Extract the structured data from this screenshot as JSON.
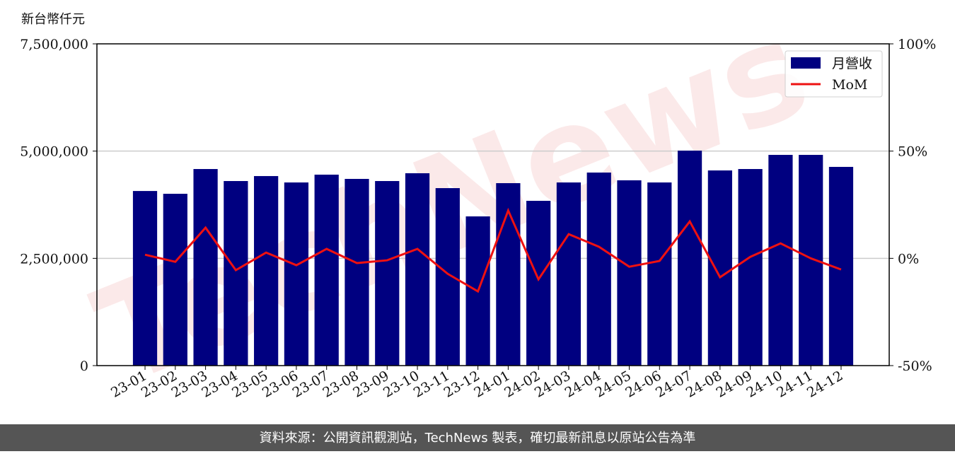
{
  "chart_data": {
    "type": "bar-line",
    "unit_label": "新台幣仟元",
    "watermark": "TechNews",
    "footer": "資料來源：公開資訊觀測站，TechNews 製表，確切最新訊息以原站公告為準",
    "categories": [
      "23-01",
      "23-02",
      "23-03",
      "23-04",
      "23-05",
      "23-06",
      "23-07",
      "23-08",
      "23-09",
      "23-10",
      "23-11",
      "23-12",
      "24-01",
      "24-02",
      "24-03",
      "24-04",
      "24-05",
      "24-06",
      "24-07",
      "24-08",
      "24-09",
      "24-10",
      "24-11",
      "24-12"
    ],
    "series": [
      {
        "name": "月營收",
        "color": "#000080",
        "values": [
          4070000,
          4005000,
          4582000,
          4302000,
          4418000,
          4269000,
          4451000,
          4352000,
          4302000,
          4484000,
          4137000,
          3478000,
          4253000,
          3841000,
          4269000,
          4500000,
          4319000,
          4269000,
          5011000,
          4549000,
          4582000,
          4912000,
          4912000,
          4632000
        ]
      },
      {
        "name": "MoM",
        "color": "#ee1111",
        "axis": "y2",
        "values": [
          1.7,
          -1.6,
          14.3,
          -5.5,
          2.7,
          -3.2,
          4.4,
          -2.2,
          -0.9,
          4.4,
          -7.2,
          -15.4,
          22.3,
          -9.8,
          11.3,
          5.4,
          -3.9,
          -1.2,
          17.2,
          -8.8,
          0.7,
          7.0,
          0,
          -5.2
        ]
      }
    ],
    "ylim": [
      0,
      7500000
    ],
    "yticks": [
      {
        "value": 0,
        "label": "0"
      },
      {
        "value": 2500000,
        "label": "2,500,000"
      },
      {
        "value": 5000000,
        "label": "5,000,000"
      },
      {
        "value": 7500000,
        "label": "7,500,000"
      }
    ],
    "y2lim": [
      -50,
      100
    ],
    "y2ticks": [
      {
        "value": -50,
        "label": "-50%"
      },
      {
        "value": 0,
        "label": "0%"
      },
      {
        "value": 50,
        "label": "50%"
      },
      {
        "value": 100,
        "label": "100%"
      }
    ],
    "grid": true,
    "legend": "upper right"
  }
}
